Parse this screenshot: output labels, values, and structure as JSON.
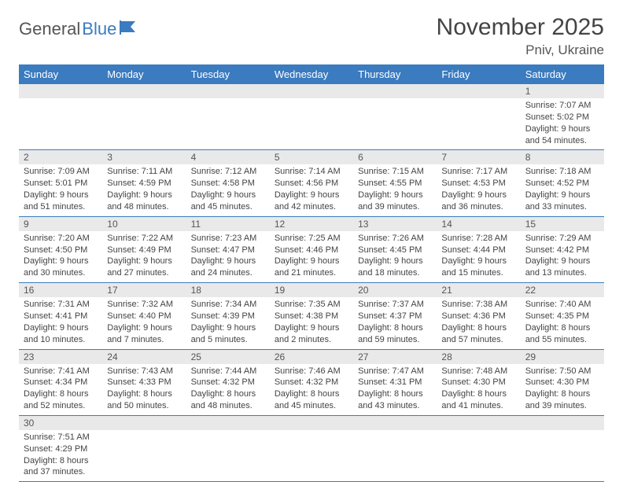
{
  "logo": {
    "text1": "General",
    "text2": "Blue"
  },
  "title": "November 2025",
  "location": "Pniv, Ukraine",
  "colors": {
    "header_bg": "#3b7bbf",
    "header_text": "#ffffff",
    "daynum_bg": "#e9e9e9",
    "border": "#3b7bbf",
    "body_text": "#444444"
  },
  "weekdays": [
    "Sunday",
    "Monday",
    "Tuesday",
    "Wednesday",
    "Thursday",
    "Friday",
    "Saturday"
  ],
  "weeks": [
    [
      null,
      null,
      null,
      null,
      null,
      null,
      {
        "n": "1",
        "sr": "7:07 AM",
        "ss": "5:02 PM",
        "dl": "9 hours and 54 minutes."
      }
    ],
    [
      {
        "n": "2",
        "sr": "7:09 AM",
        "ss": "5:01 PM",
        "dl": "9 hours and 51 minutes."
      },
      {
        "n": "3",
        "sr": "7:11 AM",
        "ss": "4:59 PM",
        "dl": "9 hours and 48 minutes."
      },
      {
        "n": "4",
        "sr": "7:12 AM",
        "ss": "4:58 PM",
        "dl": "9 hours and 45 minutes."
      },
      {
        "n": "5",
        "sr": "7:14 AM",
        "ss": "4:56 PM",
        "dl": "9 hours and 42 minutes."
      },
      {
        "n": "6",
        "sr": "7:15 AM",
        "ss": "4:55 PM",
        "dl": "9 hours and 39 minutes."
      },
      {
        "n": "7",
        "sr": "7:17 AM",
        "ss": "4:53 PM",
        "dl": "9 hours and 36 minutes."
      },
      {
        "n": "8",
        "sr": "7:18 AM",
        "ss": "4:52 PM",
        "dl": "9 hours and 33 minutes."
      }
    ],
    [
      {
        "n": "9",
        "sr": "7:20 AM",
        "ss": "4:50 PM",
        "dl": "9 hours and 30 minutes."
      },
      {
        "n": "10",
        "sr": "7:22 AM",
        "ss": "4:49 PM",
        "dl": "9 hours and 27 minutes."
      },
      {
        "n": "11",
        "sr": "7:23 AM",
        "ss": "4:47 PM",
        "dl": "9 hours and 24 minutes."
      },
      {
        "n": "12",
        "sr": "7:25 AM",
        "ss": "4:46 PM",
        "dl": "9 hours and 21 minutes."
      },
      {
        "n": "13",
        "sr": "7:26 AM",
        "ss": "4:45 PM",
        "dl": "9 hours and 18 minutes."
      },
      {
        "n": "14",
        "sr": "7:28 AM",
        "ss": "4:44 PM",
        "dl": "9 hours and 15 minutes."
      },
      {
        "n": "15",
        "sr": "7:29 AM",
        "ss": "4:42 PM",
        "dl": "9 hours and 13 minutes."
      }
    ],
    [
      {
        "n": "16",
        "sr": "7:31 AM",
        "ss": "4:41 PM",
        "dl": "9 hours and 10 minutes."
      },
      {
        "n": "17",
        "sr": "7:32 AM",
        "ss": "4:40 PM",
        "dl": "9 hours and 7 minutes."
      },
      {
        "n": "18",
        "sr": "7:34 AM",
        "ss": "4:39 PM",
        "dl": "9 hours and 5 minutes."
      },
      {
        "n": "19",
        "sr": "7:35 AM",
        "ss": "4:38 PM",
        "dl": "9 hours and 2 minutes."
      },
      {
        "n": "20",
        "sr": "7:37 AM",
        "ss": "4:37 PM",
        "dl": "8 hours and 59 minutes."
      },
      {
        "n": "21",
        "sr": "7:38 AM",
        "ss": "4:36 PM",
        "dl": "8 hours and 57 minutes."
      },
      {
        "n": "22",
        "sr": "7:40 AM",
        "ss": "4:35 PM",
        "dl": "8 hours and 55 minutes."
      }
    ],
    [
      {
        "n": "23",
        "sr": "7:41 AM",
        "ss": "4:34 PM",
        "dl": "8 hours and 52 minutes."
      },
      {
        "n": "24",
        "sr": "7:43 AM",
        "ss": "4:33 PM",
        "dl": "8 hours and 50 minutes."
      },
      {
        "n": "25",
        "sr": "7:44 AM",
        "ss": "4:32 PM",
        "dl": "8 hours and 48 minutes."
      },
      {
        "n": "26",
        "sr": "7:46 AM",
        "ss": "4:32 PM",
        "dl": "8 hours and 45 minutes."
      },
      {
        "n": "27",
        "sr": "7:47 AM",
        "ss": "4:31 PM",
        "dl": "8 hours and 43 minutes."
      },
      {
        "n": "28",
        "sr": "7:48 AM",
        "ss": "4:30 PM",
        "dl": "8 hours and 41 minutes."
      },
      {
        "n": "29",
        "sr": "7:50 AM",
        "ss": "4:30 PM",
        "dl": "8 hours and 39 minutes."
      }
    ],
    [
      {
        "n": "30",
        "sr": "7:51 AM",
        "ss": "4:29 PM",
        "dl": "8 hours and 37 minutes."
      },
      null,
      null,
      null,
      null,
      null,
      null
    ]
  ],
  "labels": {
    "sunrise": "Sunrise:",
    "sunset": "Sunset:",
    "daylight": "Daylight:"
  }
}
